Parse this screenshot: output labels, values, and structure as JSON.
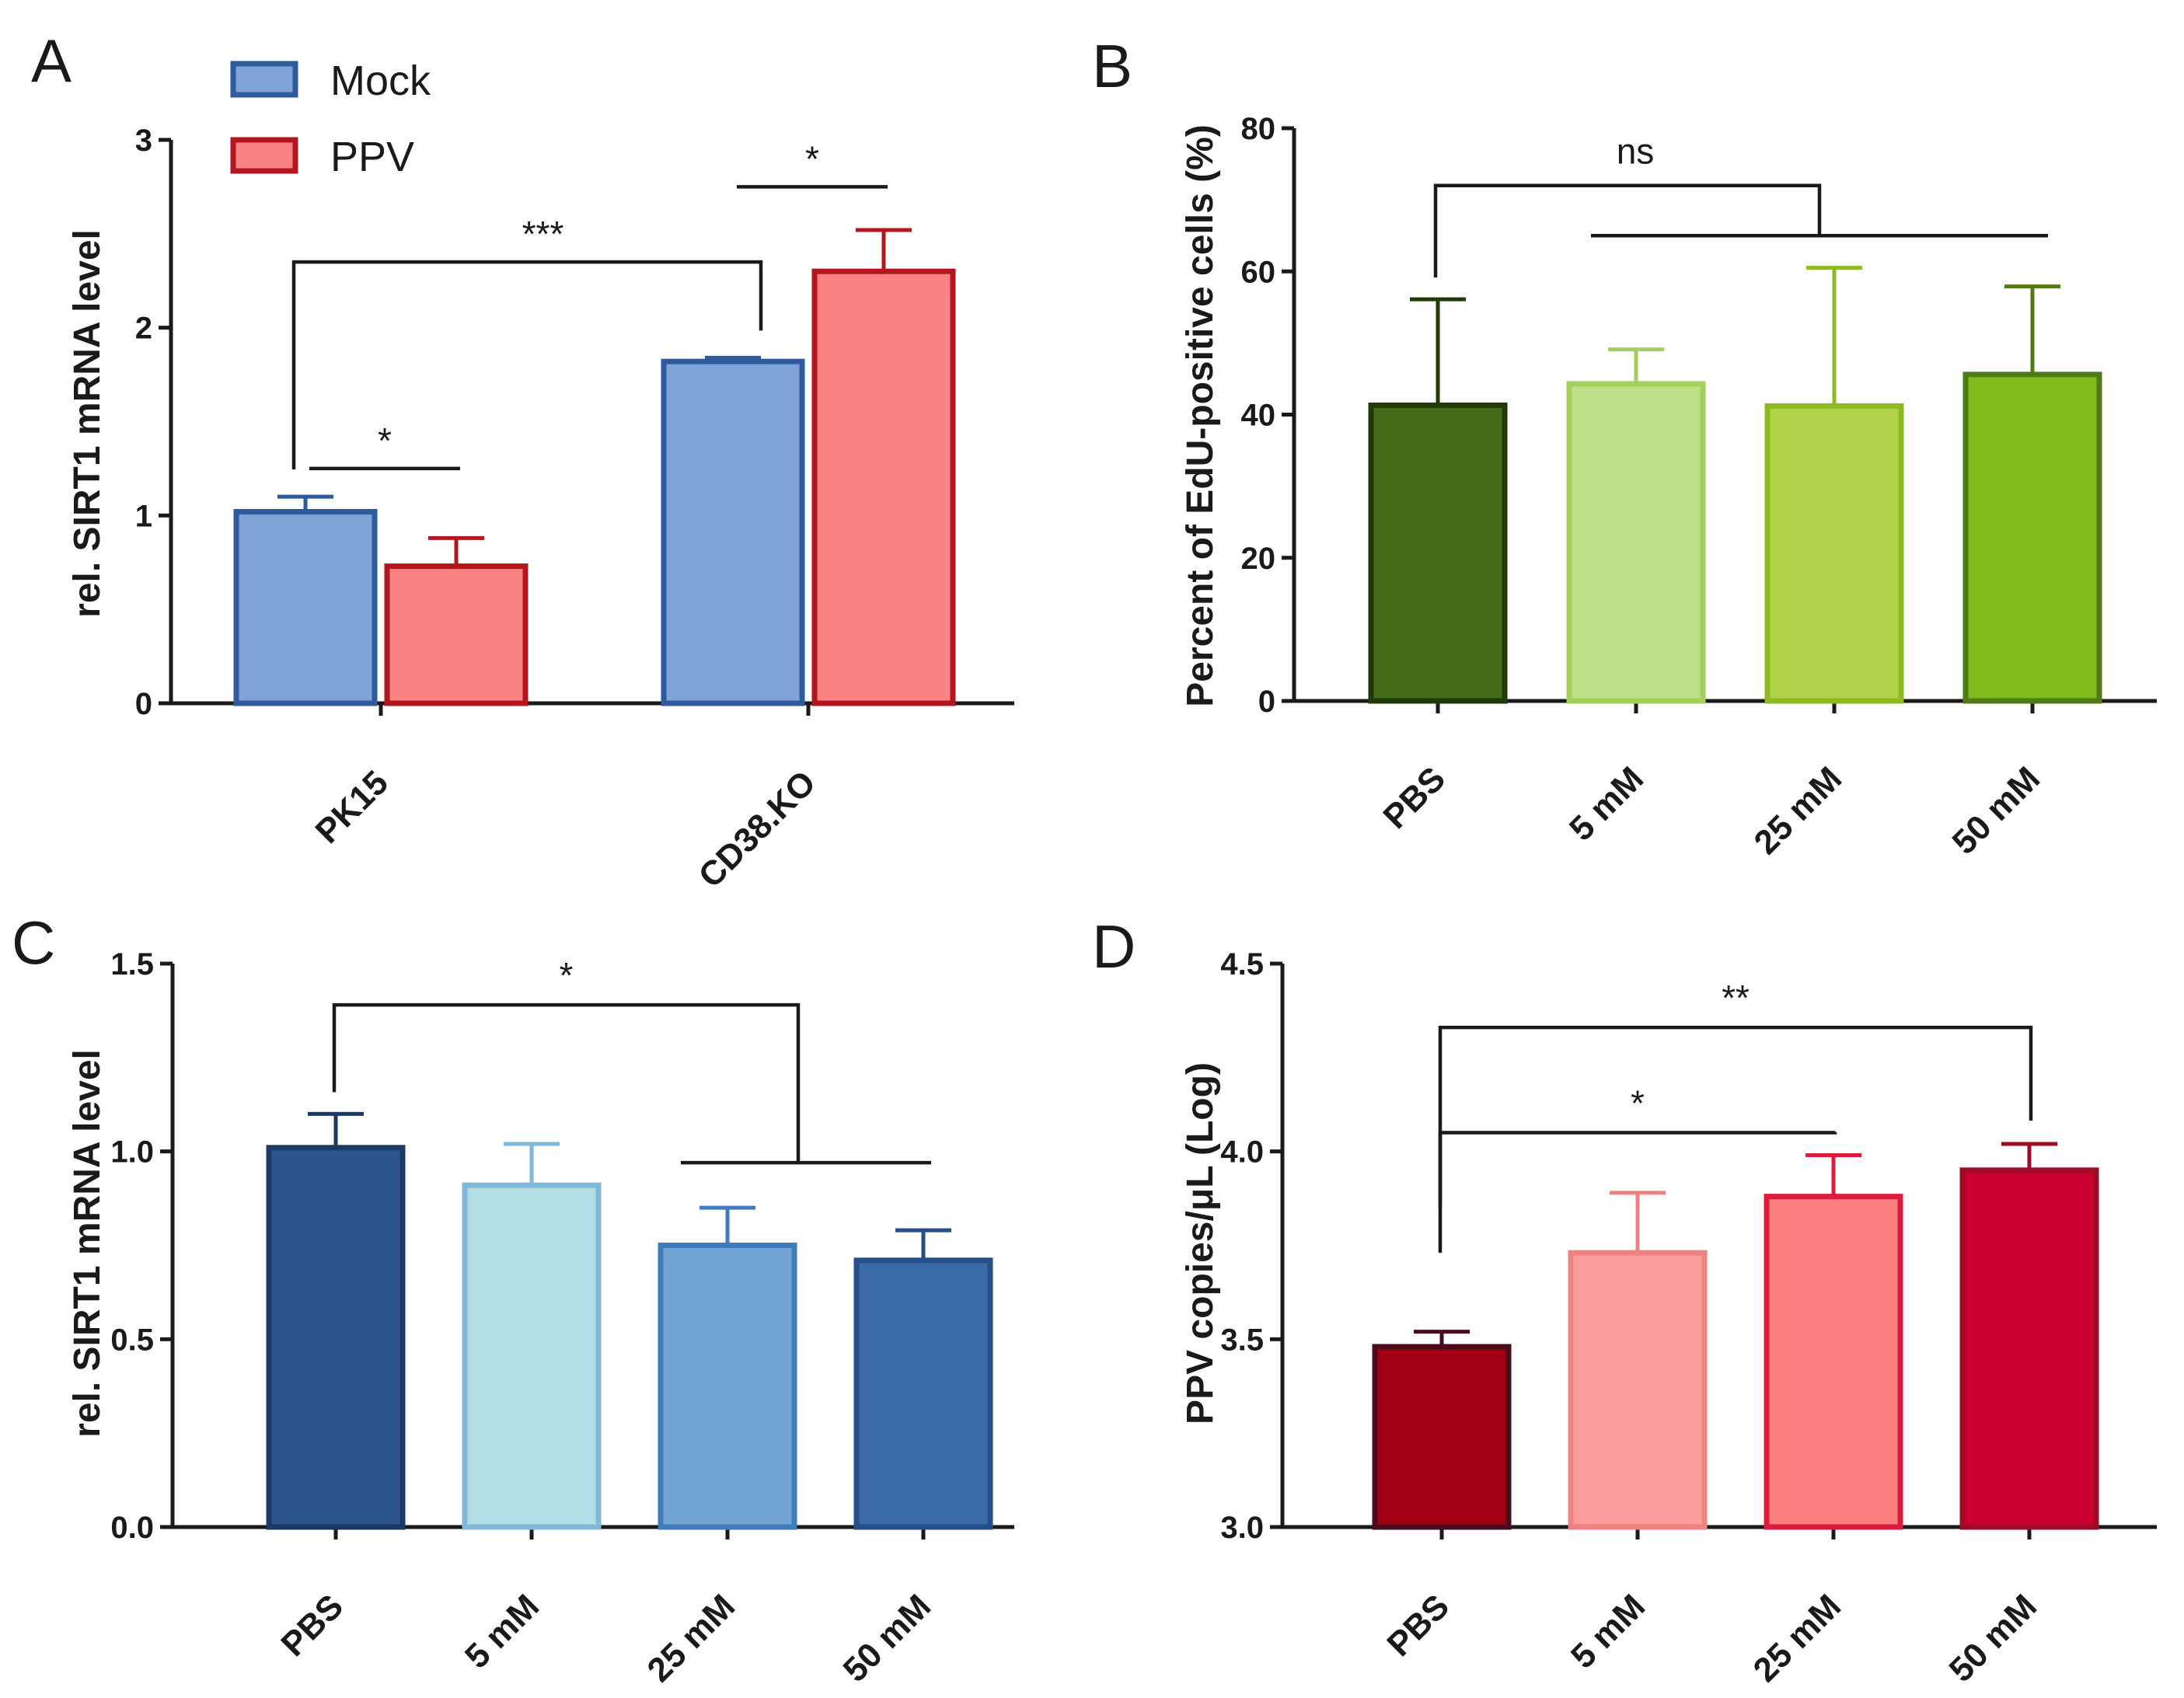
{
  "chart_data": [
    {
      "panel": "A",
      "type": "bar",
      "ylabel": "rel. SIRT1 mRNA level",
      "xlabel": "",
      "ylim": [
        0,
        3
      ],
      "yticks": [
        0,
        1,
        2,
        3
      ],
      "yticklabels": [
        "0",
        "1",
        "2",
        "3"
      ],
      "categories": [
        "PK15",
        "CD38.KO"
      ],
      "legend": {
        "position": "top-left",
        "entries": [
          "Mock",
          "PPV"
        ]
      },
      "series": [
        {
          "name": "Mock",
          "values": [
            1.02,
            1.82
          ],
          "errors": [
            0.08,
            0.02
          ],
          "fill": "#7fa3d6",
          "edge": "#2e5a9e"
        },
        {
          "name": "PPV",
          "values": [
            0.73,
            2.3
          ],
          "errors": [
            0.15,
            0.22
          ],
          "fill": "#fb8383",
          "edge": "#b3161d"
        }
      ],
      "significance": [
        {
          "label": "*",
          "type": "within",
          "category": 0,
          "level": 1.25
        },
        {
          "label": "*",
          "type": "within",
          "category": 1,
          "level": 2.75
        },
        {
          "label": "***",
          "type": "mock-bracket",
          "level": 2.35
        }
      ]
    },
    {
      "panel": "B",
      "type": "bar",
      "ylabel": "Percent of EdU-positive cells (%)",
      "xlabel": "",
      "ylim": [
        0,
        80
      ],
      "yticks": [
        0,
        20,
        40,
        60,
        80
      ],
      "yticklabels": [
        "0",
        "20",
        "40",
        "60",
        "80"
      ],
      "categories": [
        "PBS",
        "5 mM",
        "25 mM",
        "50 mM"
      ],
      "values": [
        41.3,
        44.3,
        41.2,
        45.6
      ],
      "errors": [
        14.8,
        4.8,
        19.3,
        12.3
      ],
      "fills": [
        "#456b18",
        "#bedf88",
        "#b0d34a",
        "#82bc1c"
      ],
      "edges": [
        "#1f3b07",
        "#a4cf5d",
        "#8dba23",
        "#4f7a16"
      ],
      "significance": [
        {
          "label": "ns",
          "ref": 0,
          "group": [
            1,
            3
          ],
          "level_top": 72,
          "level_group": 65
        }
      ]
    },
    {
      "panel": "C",
      "type": "bar",
      "ylabel": "rel. SIRT1 mRNA level",
      "xlabel": "",
      "ylim": [
        0,
        1.5
      ],
      "yticks": [
        0,
        0.5,
        1.0,
        1.5
      ],
      "yticklabels": [
        "0.0",
        "0.5",
        "1.0",
        "1.5"
      ],
      "categories": [
        "PBS",
        "5 mM",
        "25 mM",
        "50 mM"
      ],
      "values": [
        1.01,
        0.91,
        0.75,
        0.71
      ],
      "errors": [
        0.09,
        0.11,
        0.1,
        0.08
      ],
      "fills": [
        "#2c5590",
        "#b3dee5",
        "#72a5d3",
        "#3a6ba7"
      ],
      "edges": [
        "#1b3964",
        "#7fb8d8",
        "#3f7bbd",
        "#244f87"
      ],
      "significance": [
        {
          "label": "*",
          "ref": 0,
          "group": [
            2,
            3
          ],
          "level_top": 1.39,
          "level_group": 0.97
        }
      ]
    },
    {
      "panel": "D",
      "type": "bar",
      "ylabel": "PPV copies/μL (Log)",
      "xlabel": "",
      "ylim": [
        3.0,
        4.5
      ],
      "yticks": [
        3.0,
        3.5,
        4.0,
        4.5
      ],
      "yticklabels": [
        "3.0",
        "3.5",
        "4.0",
        "4.5"
      ],
      "categories": [
        "PBS",
        "5 mM",
        "25 mM",
        "50 mM"
      ],
      "values": [
        3.48,
        3.73,
        3.88,
        3.95
      ],
      "errors": [
        0.04,
        0.16,
        0.11,
        0.07
      ],
      "fills": [
        "#a10013",
        "#fb9c9c",
        "#fb7f7f",
        "#cb0030"
      ],
      "edges": [
        "#4b0b1e",
        "#f08181",
        "#dc1b3d",
        "#9e0d25"
      ],
      "significance": [
        {
          "label": "*",
          "from": 0,
          "to": 2,
          "level": 4.05
        },
        {
          "label": "**",
          "from": 0,
          "to": 3,
          "level": 4.33
        }
      ]
    }
  ]
}
